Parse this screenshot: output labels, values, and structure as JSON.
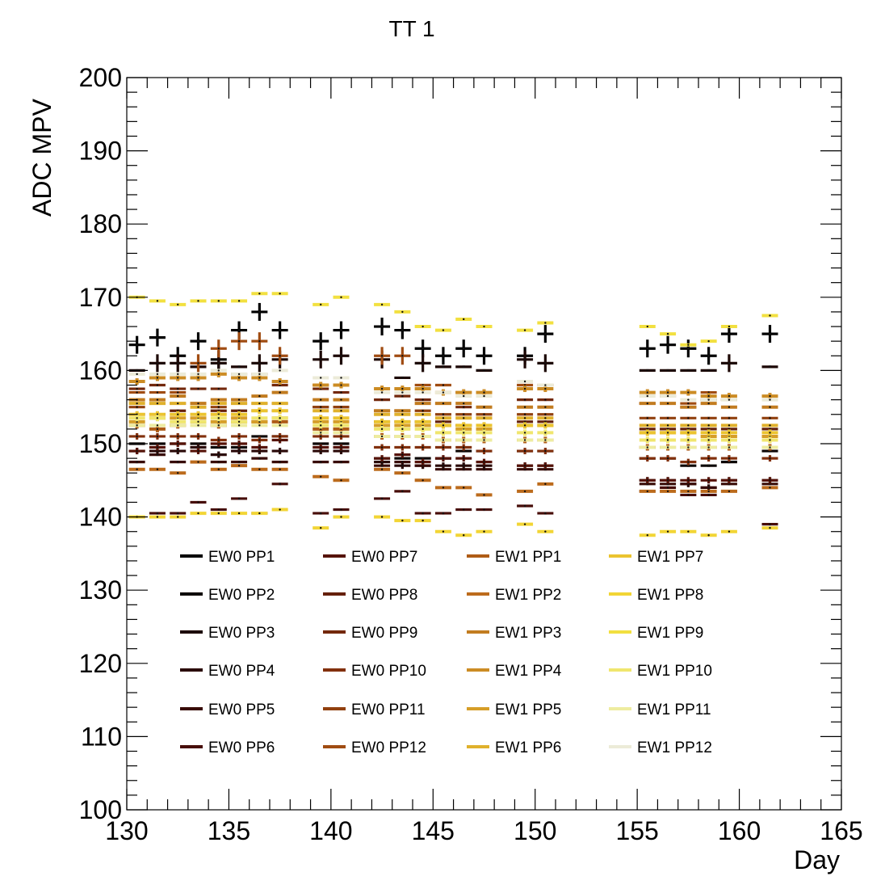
{
  "chart_data": {
    "type": "scatter",
    "title": "TT 1",
    "xlabel": "Day",
    "ylabel": "ADC MPV",
    "xlim": [
      130,
      165
    ],
    "ylim": [
      100,
      200
    ],
    "x_ticks": [
      130,
      135,
      140,
      145,
      150,
      155,
      160,
      165
    ],
    "y_ticks": [
      100,
      110,
      120,
      130,
      140,
      150,
      160,
      170,
      180,
      190,
      200
    ],
    "x_tick_labels": [
      "130",
      "135",
      "140",
      "145",
      "150",
      "155",
      "160",
      "165"
    ],
    "y_tick_labels": [
      "100",
      "110",
      "120",
      "130",
      "140",
      "150",
      "160",
      "170",
      "180",
      "190",
      "200"
    ],
    "grid": false,
    "legend_position": "bottom-left, inside plot, 4 columns",
    "x": [
      130.5,
      131.5,
      132.5,
      133.5,
      134.5,
      135.5,
      136.5,
      137.5,
      139.5,
      140.5,
      142.5,
      143.5,
      144.5,
      145.5,
      146.5,
      147.5,
      149.5,
      150.5,
      155.5,
      156.5,
      157.5,
      158.5,
      159.5,
      161.5
    ],
    "series": [
      {
        "name": "EW0 PP1",
        "color": "#000000",
        "values": [
          163.5,
          164.5,
          162,
          164,
          161.5,
          165.5,
          168,
          165.5,
          164,
          165.5,
          166,
          165.5,
          163,
          162,
          163,
          162,
          162,
          165,
          163,
          163.5,
          163,
          162,
          165,
          165
        ]
      },
      {
        "name": "EW0 PP2",
        "color": "#0d0503",
        "values": [
          150,
          150,
          150,
          150,
          149.5,
          149.5,
          151,
          151,
          150,
          150,
          148,
          148,
          148,
          148,
          149,
          149,
          149,
          149,
          148,
          148,
          147,
          147,
          147.5,
          149
        ]
      },
      {
        "name": "EW0 PP3",
        "color": "#1c0704",
        "values": [
          160,
          161,
          161,
          160.5,
          161,
          160.5,
          161,
          161.5,
          161.5,
          162,
          161.5,
          159,
          161,
          160.5,
          160.5,
          160,
          161.5,
          161,
          160,
          160,
          160,
          160,
          161,
          160.5
        ]
      },
      {
        "name": "EW0 PP4",
        "color": "#2a0807",
        "values": [
          149,
          149,
          149,
          149.5,
          148.5,
          149,
          149,
          149,
          149,
          149,
          147.5,
          147,
          147,
          147,
          147,
          147,
          147,
          147,
          145,
          145,
          144.5,
          144,
          145,
          145
        ]
      },
      {
        "name": "EW0 PP5",
        "color": "#380b07",
        "values": [
          147.5,
          148.5,
          147.5,
          147.5,
          147.5,
          147.5,
          148,
          147.5,
          147.5,
          147.5,
          147,
          147.5,
          147,
          146.5,
          146.5,
          146.5,
          146.5,
          146.5,
          144.5,
          144.5,
          144.5,
          144,
          144.5,
          144.5
        ]
      },
      {
        "name": "EW0 PP6",
        "color": "#470d09",
        "values": [
          140,
          140.5,
          140.5,
          142,
          141,
          142.5,
          140.5,
          144.5,
          140.5,
          141,
          142.5,
          143.5,
          140.5,
          140.5,
          141,
          141,
          141.5,
          140.5,
          143.5,
          144,
          143,
          143,
          143.5,
          139
        ]
      },
      {
        "name": "EW0 PP7",
        "color": "#561308",
        "values": [
          149,
          149.5,
          150,
          149,
          150,
          150,
          149.5,
          150.5,
          149.5,
          149.5,
          148,
          148.5,
          147.5,
          148,
          148,
          147.5,
          147,
          147,
          145,
          145,
          145,
          145,
          145,
          145
        ]
      },
      {
        "name": "EW0 PP8",
        "color": "#65200b",
        "values": [
          154,
          154,
          154.5,
          154,
          154.5,
          154.5,
          154.5,
          154.5,
          155,
          155,
          153,
          153,
          153,
          153,
          152.5,
          152.5,
          153,
          153,
          152,
          152,
          152,
          152,
          152,
          152
        ]
      },
      {
        "name": "EW0 PP9",
        "color": "#73280c",
        "values": [
          157.5,
          158,
          157.5,
          157.5,
          157.5,
          159.5,
          159.5,
          158,
          157.5,
          157,
          156,
          156.5,
          156,
          155.5,
          155,
          155,
          156,
          156,
          155.5,
          156.5,
          155,
          156,
          156,
          156
        ]
      },
      {
        "name": "EW0 PP10",
        "color": "#82300d",
        "values": [
          151,
          151,
          151,
          151,
          150.5,
          151,
          150.5,
          151,
          151,
          151,
          149.5,
          149.5,
          149.5,
          149.5,
          149.5,
          149,
          149,
          149,
          148,
          148,
          147.5,
          148,
          148,
          148
        ]
      },
      {
        "name": "EW0 PP11",
        "color": "#91400f",
        "values": [
          155,
          155.5,
          155.5,
          155.5,
          155,
          155.5,
          155.5,
          155.5,
          155,
          155,
          154.5,
          154.5,
          154.5,
          154,
          154,
          154,
          154,
          154,
          153.5,
          153.5,
          153.5,
          153.5,
          153.5,
          153.5
        ]
      },
      {
        "name": "EW0 PP12",
        "color": "#a04c12",
        "values": [
          157,
          157,
          157,
          161,
          163,
          164,
          164,
          162,
          158,
          158,
          162,
          162,
          158,
          158,
          157,
          157,
          158,
          158,
          155.5,
          157,
          155.5,
          157,
          156,
          156
        ]
      },
      {
        "name": "EW1 PP1",
        "color": "#af5c16",
        "values": [
          152.5,
          152,
          152.5,
          153,
          152.5,
          153,
          153,
          153,
          152,
          152,
          151,
          151,
          151,
          150.5,
          150.5,
          150.5,
          150.5,
          150.5,
          149.5,
          149.5,
          149.5,
          149.5,
          149.5,
          149.5
        ]
      },
      {
        "name": "EW1 PP2",
        "color": "#bc6b1c",
        "values": [
          146.5,
          146.5,
          146,
          147.5,
          146.5,
          147,
          146.5,
          146.5,
          145.5,
          145,
          146.5,
          146,
          145,
          144,
          144,
          143,
          143.5,
          144.5,
          143.5,
          143.5,
          143.5,
          143.5,
          143.5,
          144
        ]
      },
      {
        "name": "EW1 PP3",
        "color": "#c27c20",
        "values": [
          156,
          156,
          156.5,
          155.5,
          156,
          156,
          156.5,
          157,
          156,
          156,
          154.5,
          154.5,
          155.5,
          155.5,
          155.5,
          155,
          155,
          155,
          155.5,
          155.5,
          155,
          155.5,
          155,
          155
        ]
      },
      {
        "name": "EW1 PP4",
        "color": "#cc8c24",
        "values": [
          158.5,
          159,
          159,
          159,
          159.5,
          159,
          159,
          158.5,
          158,
          158,
          157.5,
          157.5,
          157.5,
          157,
          157,
          157,
          157.5,
          157.5,
          157,
          157,
          157,
          156.5,
          156.5,
          156.5
        ]
      },
      {
        "name": "EW1 PP5",
        "color": "#d69e28",
        "values": [
          153,
          153.5,
          153.5,
          153.5,
          153,
          153.5,
          153,
          153.5,
          153,
          153,
          152.5,
          152.5,
          152.5,
          152.5,
          152,
          152,
          152.5,
          152.5,
          151.5,
          151.5,
          151.5,
          151,
          151,
          151
        ]
      },
      {
        "name": "EW1 PP6",
        "color": "#e0b12c",
        "values": [
          155.5,
          155.5,
          155.5,
          155,
          155.5,
          155.5,
          155.5,
          155.5,
          154.5,
          154.5,
          154,
          154,
          154,
          153.5,
          153.5,
          153.5,
          153.5,
          153.5,
          152.5,
          152.5,
          152.5,
          152.5,
          152.5,
          152.5
        ]
      },
      {
        "name": "EW1 PP7",
        "color": "#ebc430",
        "values": [
          154,
          154,
          154,
          154,
          154,
          154,
          154.5,
          154.5,
          153.5,
          153.5,
          153,
          153,
          153,
          152.5,
          152.5,
          152.5,
          152.5,
          152.5,
          151.5,
          151.5,
          151.5,
          151.5,
          151.5,
          151.5
        ]
      },
      {
        "name": "EW1 PP8",
        "color": "#f2d535",
        "values": [
          140,
          140,
          140,
          140.5,
          140.5,
          140.5,
          140.5,
          141,
          138.5,
          140,
          140,
          139.5,
          139.5,
          138,
          137.5,
          138,
          139,
          138,
          137.5,
          138,
          138,
          137.5,
          138,
          138.5
        ]
      },
      {
        "name": "EW1 PP9",
        "color": "#f2e040",
        "values": [
          170,
          169.5,
          169,
          169.5,
          169.5,
          169.5,
          170.5,
          170.5,
          169,
          170,
          169,
          168,
          166,
          165.5,
          167,
          166,
          165.5,
          166.5,
          166,
          165,
          163.5,
          164,
          166,
          167.5
        ]
      },
      {
        "name": "EW1 PP10",
        "color": "#f0e66e",
        "values": [
          153.5,
          153.5,
          153,
          153,
          153.5,
          153,
          153.5,
          153.5,
          152.5,
          152.5,
          152,
          152,
          152,
          151.5,
          151.5,
          151.5,
          151.5,
          151.5,
          150.5,
          150.5,
          150.5,
          150.5,
          150.5,
          150.5
        ]
      },
      {
        "name": "EW1 PP11",
        "color": "#eeeca0",
        "values": [
          152.5,
          152.5,
          152.5,
          152.5,
          152.5,
          152.5,
          152.5,
          152.5,
          151.5,
          151.5,
          151,
          151,
          151,
          150.5,
          150.5,
          150.5,
          150.5,
          150.5,
          149.5,
          149.5,
          149.5,
          149.5,
          149.5,
          149.5
        ]
      },
      {
        "name": "EW1 PP12",
        "color": "#ecebd8",
        "values": [
          159.5,
          159.5,
          159.5,
          159.5,
          160,
          159.5,
          159.5,
          160,
          159,
          159,
          157,
          157,
          157,
          157,
          156.5,
          156.5,
          158.5,
          158,
          156.5,
          156.5,
          156,
          156,
          156,
          156
        ]
      }
    ]
  }
}
